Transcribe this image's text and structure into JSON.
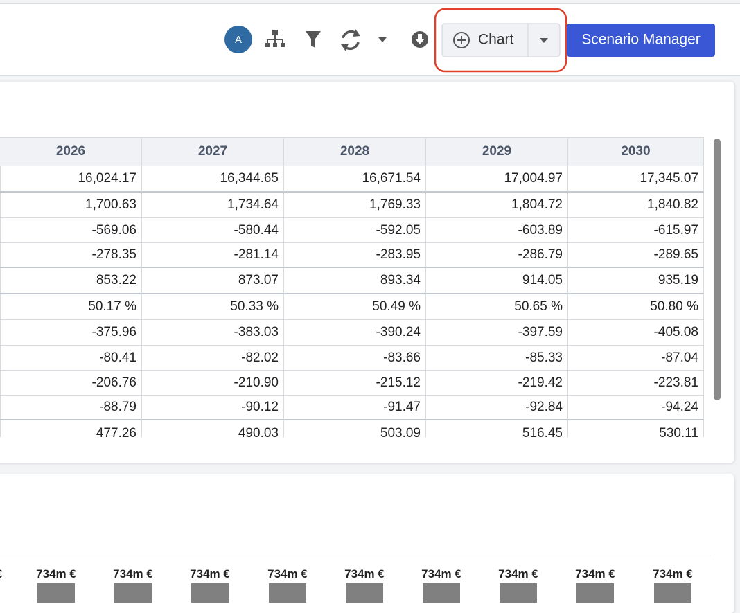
{
  "toolbar": {
    "avatar": "A",
    "chart_button": "Chart",
    "scenario_button": "Scenario Manager"
  },
  "table": {
    "header": [
      "2026",
      "2027",
      "2028",
      "2029",
      "2030"
    ],
    "rows": [
      [
        "16,024.17",
        "16,344.65",
        "16,671.54",
        "17,004.97",
        "17,345.07"
      ],
      [
        "1,700.63",
        "1,734.64",
        "1,769.33",
        "1,804.72",
        "1,840.82"
      ],
      [
        "-569.06",
        "-580.44",
        "-592.05",
        "-603.89",
        "-615.97"
      ],
      [
        "-278.35",
        "-281.14",
        "-283.95",
        "-286.79",
        "-289.65"
      ],
      [
        "853.22",
        "873.07",
        "893.34",
        "914.05",
        "935.19"
      ],
      [
        "50.17 %",
        "50.33 %",
        "50.49 %",
        "50.65 %",
        "50.80 %"
      ],
      [
        "-375.96",
        "-383.03",
        "-390.24",
        "-397.59",
        "-405.08"
      ],
      [
        "-80.41",
        "-82.02",
        "-83.66",
        "-85.33",
        "-87.04"
      ],
      [
        "-206.76",
        "-210.90",
        "-215.12",
        "-219.42",
        "-223.81"
      ],
      [
        "-88.79",
        "-90.12",
        "-91.47",
        "-92.84",
        "-94.24"
      ],
      [
        "477.26",
        "490.03",
        "503.09",
        "516.45",
        "530.11"
      ]
    ]
  },
  "bar_labels": [
    "€",
    "734m €",
    "734m €",
    "734m €",
    "734m €",
    "734m €",
    "734m €",
    "734m €",
    "734m €",
    "734m €"
  ]
}
